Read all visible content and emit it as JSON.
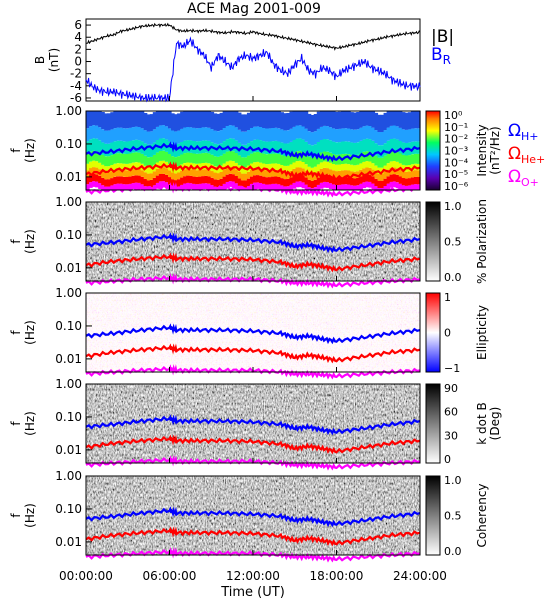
{
  "title": "ACE Mag 2001-009",
  "x_axis": {
    "label": "Time (UT)",
    "ticks": [
      "00:00:00",
      "06:00:00",
      "12:00:00",
      "18:00:00",
      "24:00:00"
    ],
    "range_hours": [
      0,
      24
    ]
  },
  "panel1": {
    "ylabel_line1": "B",
    "ylabel_line2": "(nT)",
    "yticks": [
      "6",
      "4",
      "2",
      "0",
      "-2",
      "-4",
      "-6"
    ],
    "ylim": [
      -6.5,
      7
    ],
    "legend_B": "|B|",
    "legend_BR": "B",
    "legend_BR_sub": "R",
    "colors": {
      "B": "#000000",
      "BR": "#0000ff"
    }
  },
  "freq_axis": {
    "ylabel_line1": "f",
    "ylabel_line2": "(Hz)",
    "yticks": [
      "1.00",
      "0.10",
      "0.01"
    ],
    "range_hz": [
      0.004,
      1.0
    ]
  },
  "gyro_legend": [
    {
      "symbol": "Ω",
      "sub": "H+",
      "color": "#0000ff"
    },
    {
      "symbol": "Ω",
      "sub": "He+",
      "color": "#ff0000"
    },
    {
      "symbol": "Ω",
      "sub": "O+",
      "color": "#ff00ff"
    }
  ],
  "colorbars": [
    {
      "panel": "intensity",
      "label1": "Intensity",
      "label2": "(nT²/Hz)",
      "ticks": [
        "10⁰",
        "10⁻¹",
        "10⁻²",
        "10⁻³",
        "10⁻⁴",
        "10⁻⁵",
        "10⁻⁶"
      ]
    },
    {
      "panel": "polarization",
      "label1": "% Polarization",
      "label2": "",
      "ticks": [
        "1.0",
        "0.5",
        "0.0"
      ]
    },
    {
      "panel": "ellipticity",
      "label1": "Ellipticity",
      "label2": "",
      "ticks": [
        "1",
        "0",
        "−1"
      ]
    },
    {
      "panel": "kdotb",
      "label1": "k dot B",
      "label2": "(Deg)",
      "ticks": [
        "90",
        "60",
        "30",
        "0"
      ]
    },
    {
      "panel": "coherency",
      "label1": "Coherency",
      "label2": "",
      "ticks": [
        "1.0",
        "0.5",
        "0.0"
      ]
    }
  ],
  "chart_data": {
    "type": "line",
    "title": "ACE Mag 2001-009",
    "xlabel": "Time (UT)",
    "ylabel": "B (nT)",
    "ylim": [
      -6.5,
      7
    ],
    "x_hours": [
      0,
      0.5,
      1,
      1.5,
      2,
      2.5,
      3,
      3.5,
      4,
      4.5,
      5,
      5.5,
      6,
      6.5,
      7,
      7.5,
      8,
      8.5,
      9,
      9.5,
      10,
      10.5,
      11,
      11.5,
      12,
      12.5,
      13,
      13.5,
      14,
      14.5,
      15,
      15.5,
      16,
      16.5,
      17,
      17.5,
      18,
      18.5,
      19,
      19.5,
      20,
      20.5,
      21,
      21.5,
      22,
      22.5,
      23,
      23.5,
      24
    ],
    "series": [
      {
        "name": "|B|",
        "values": [
          3.0,
          3.4,
          3.8,
          4.2,
          4.4,
          5.0,
          5.2,
          5.5,
          5.8,
          5.9,
          6.0,
          6.0,
          6.0,
          5.2,
          5.0,
          5.1,
          5.0,
          5.1,
          5.0,
          4.8,
          4.7,
          4.9,
          4.8,
          4.6,
          4.9,
          4.6,
          4.4,
          4.3,
          4.0,
          3.8,
          3.6,
          3.3,
          3.1,
          2.8,
          2.6,
          2.4,
          2.2,
          2.4,
          2.7,
          2.9,
          3.2,
          3.5,
          3.7,
          4.0,
          4.2,
          4.4,
          4.6,
          4.7,
          4.8
        ]
      },
      {
        "name": "B_R",
        "values": [
          -3.0,
          -4.2,
          -4.8,
          -5.0,
          -5.0,
          -5.3,
          -5.5,
          -5.7,
          -6.0,
          -6.0,
          -6.0,
          -6.0,
          -6.0,
          3.0,
          2.5,
          3.5,
          2.0,
          1.0,
          -1.0,
          1.0,
          0.0,
          -1.0,
          0.5,
          1.0,
          0.5,
          1.0,
          1.5,
          -0.5,
          -1.5,
          -2.0,
          -0.5,
          0.5,
          -1.5,
          -2.0,
          -1.0,
          -1.5,
          -2.5,
          -1.5,
          -1.0,
          -0.5,
          0.0,
          -1.0,
          -1.5,
          -2.0,
          -3.0,
          -3.5,
          -4.0,
          -4.0,
          -4.2
        ]
      }
    ],
    "gyrofrequencies_hz": {
      "x_hours": [
        0,
        2,
        4,
        6,
        6.5,
        8,
        10,
        12,
        14,
        15,
        16,
        17,
        18,
        20,
        22,
        24
      ],
      "H+": [
        0.05,
        0.06,
        0.075,
        0.09,
        0.075,
        0.075,
        0.075,
        0.07,
        0.06,
        0.045,
        0.05,
        0.04,
        0.035,
        0.045,
        0.06,
        0.075
      ],
      "He+": [
        0.012,
        0.016,
        0.019,
        0.022,
        0.019,
        0.019,
        0.019,
        0.018,
        0.015,
        0.011,
        0.013,
        0.011,
        0.009,
        0.012,
        0.016,
        0.019
      ],
      "O+": [
        0.0035,
        0.004,
        0.0045,
        0.005,
        0.0045,
        0.0045,
        0.0045,
        0.0045,
        0.004,
        0.0035,
        0.0035,
        0.0033,
        0.003,
        0.0035,
        0.004,
        0.0045
      ]
    }
  }
}
